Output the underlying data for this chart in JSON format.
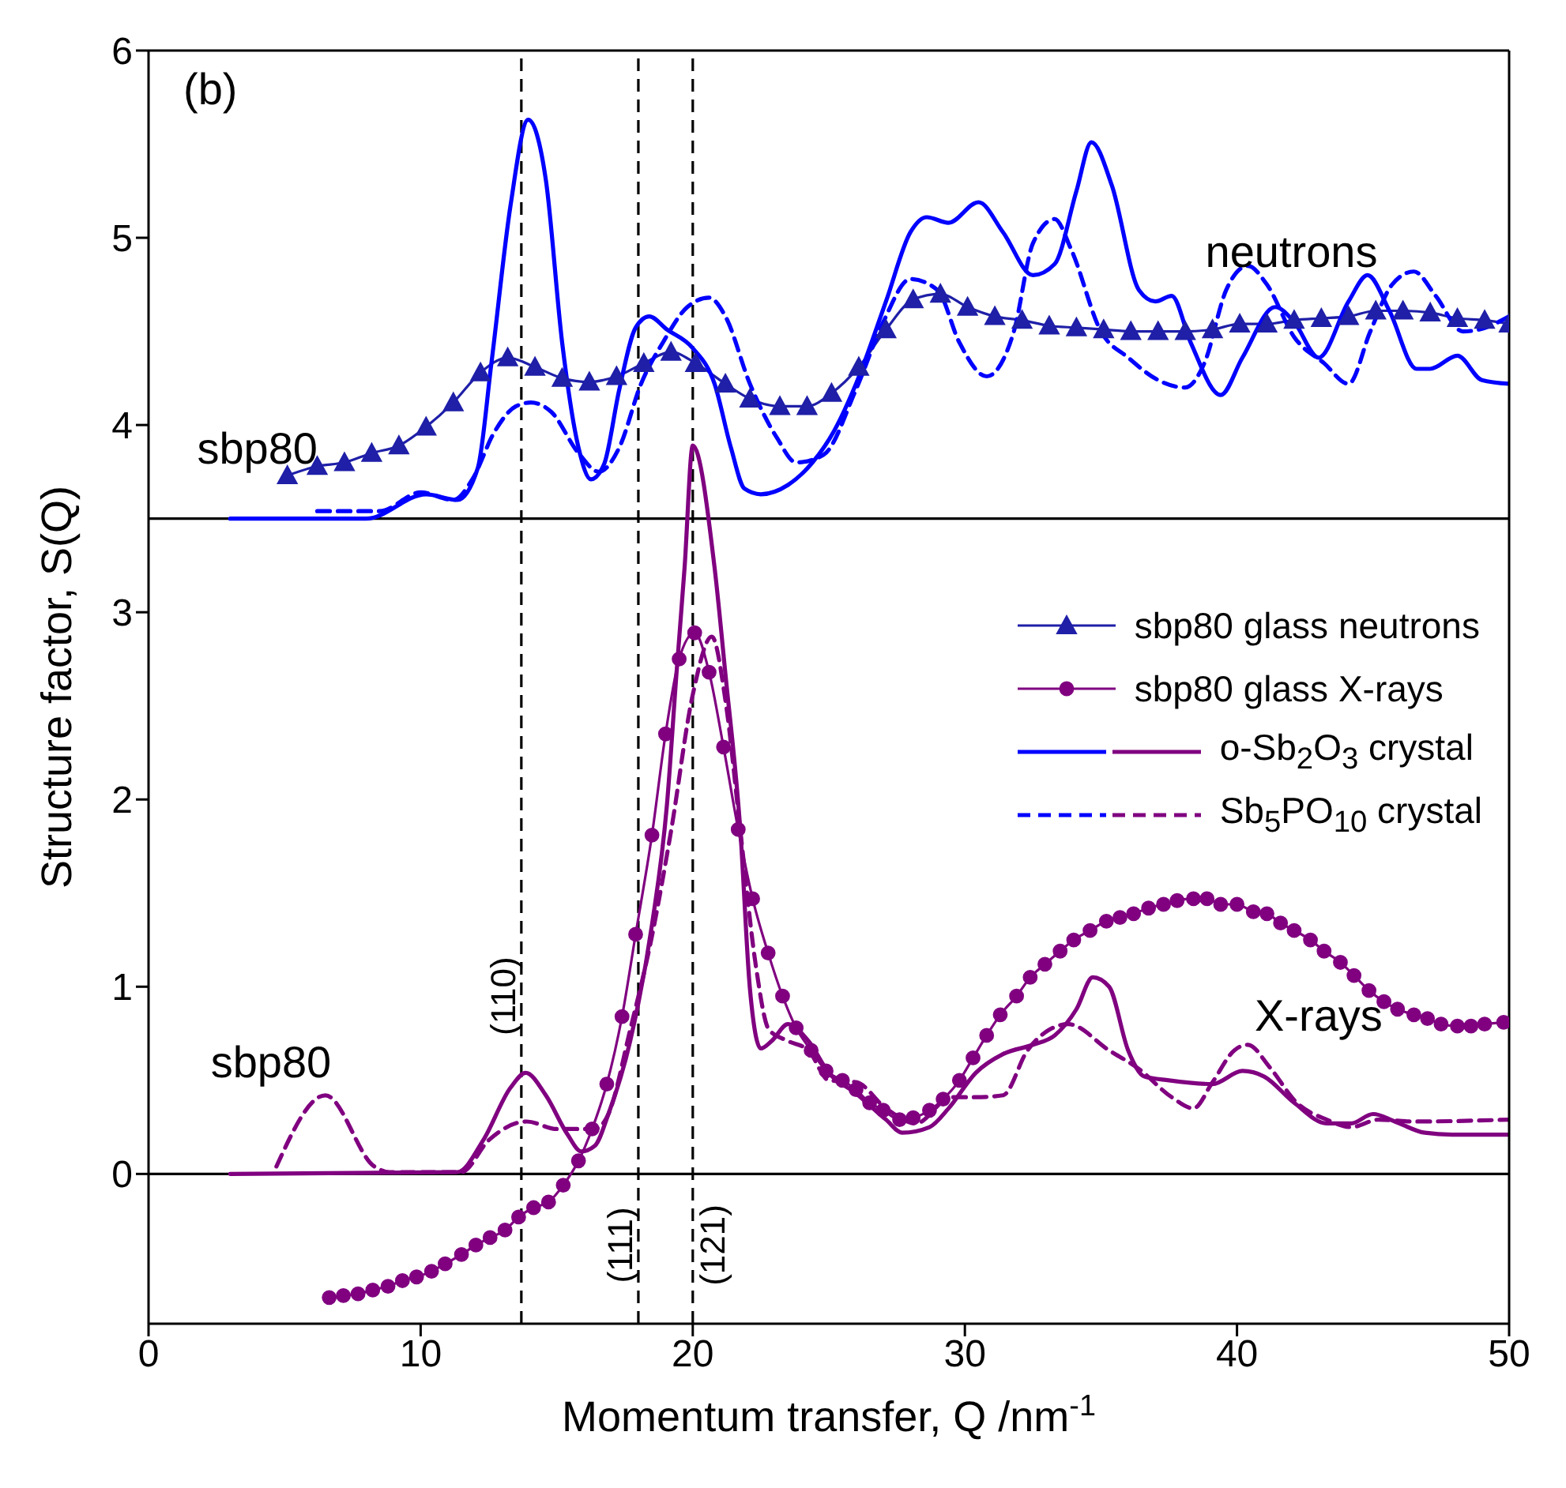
{
  "chart_data": {
    "type": "line",
    "xlabel": "Momentum transfer, Q /nm$^{-1}$",
    "ylabel": "Structure factor, S(Q)",
    "xlim": [
      0,
      50
    ],
    "xticks": [
      0,
      10,
      20,
      30,
      40,
      50
    ],
    "ylim": [
      -0.8,
      6
    ],
    "yticks": [
      0,
      1,
      2,
      3,
      4,
      5,
      6
    ],
    "legend": "right",
    "series": [
      {
        "name": "sbp80 glass neutrons",
        "color": "#1f1fa8",
        "marker": "triangle",
        "line_style": "solid",
        "x": [
          5.1,
          6.2,
          7.2,
          8.2,
          9.2,
          10.2,
          11.2,
          12.2,
          13.2,
          14.2,
          15.2,
          16.2,
          17.2,
          18.2,
          19.2,
          20.1,
          21.2,
          22.1,
          23.2,
          24.2,
          25.1,
          26.1,
          27.1,
          28.1,
          29.1,
          30.1,
          31.1,
          32.1,
          33.1,
          34.1,
          35.1,
          36.1,
          37.1,
          38.1,
          39.1,
          40.1,
          41.1,
          42.1,
          43.1,
          44.1,
          45.1,
          46.1,
          47.1,
          48.1,
          49.1,
          50.0
        ],
        "values": [
          3.73,
          3.78,
          3.8,
          3.85,
          3.89,
          3.99,
          4.12,
          4.28,
          4.36,
          4.31,
          4.25,
          4.23,
          4.26,
          4.33,
          4.39,
          4.33,
          4.22,
          4.14,
          4.1,
          4.1,
          4.17,
          4.31,
          4.51,
          4.67,
          4.7,
          4.63,
          4.58,
          4.56,
          4.53,
          4.52,
          4.51,
          4.5,
          4.5,
          4.5,
          4.51,
          4.54,
          4.54,
          4.56,
          4.57,
          4.58,
          4.61,
          4.61,
          4.6,
          4.57,
          4.56,
          4.54
        ]
      },
      {
        "name": "sbp80 glass X-rays",
        "color": "#800080",
        "marker": "circle",
        "line_style": "solid",
        "x": [
          6.64,
          7.16,
          7.7,
          8.24,
          8.8,
          9.33,
          9.85,
          10.4,
          10.9,
          11.5,
          12.03,
          12.55,
          13.1,
          13.6,
          14.15,
          14.7,
          15.24,
          15.8,
          16.3,
          16.84,
          17.4,
          17.9,
          18.5,
          19.0,
          19.5,
          20.07,
          20.6,
          21.13,
          21.67,
          22.2,
          22.77,
          23.3,
          23.8,
          24.35,
          24.9,
          25.5,
          26.0,
          26.5,
          27.0,
          27.6,
          28.1,
          28.7,
          29.2,
          29.8,
          30.3,
          30.8,
          31.3,
          31.9,
          32.4,
          32.94,
          33.5,
          34.0,
          34.6,
          35.2,
          35.7,
          36.2,
          36.75,
          37.3,
          37.8,
          38.4,
          38.9,
          39.4,
          40.0,
          40.6,
          41.1,
          41.6,
          42.1,
          42.7,
          43.2,
          43.8,
          44.3,
          44.85,
          45.4,
          45.9,
          46.5,
          47.0,
          47.5,
          48.1,
          48.6,
          49.1,
          49.8
        ],
        "values": [
          -0.66,
          -0.65,
          -0.64,
          -0.62,
          -0.6,
          -0.57,
          -0.55,
          -0.52,
          -0.48,
          -0.43,
          -0.38,
          -0.34,
          -0.3,
          -0.23,
          -0.18,
          -0.15,
          -0.06,
          0.07,
          0.24,
          0.48,
          0.84,
          1.28,
          1.81,
          2.35,
          2.75,
          2.89,
          2.68,
          2.28,
          1.84,
          1.47,
          1.18,
          0.95,
          0.78,
          0.66,
          0.55,
          0.5,
          0.45,
          0.38,
          0.34,
          0.29,
          0.3,
          0.34,
          0.4,
          0.5,
          0.62,
          0.74,
          0.85,
          0.95,
          1.05,
          1.12,
          1.19,
          1.25,
          1.3,
          1.35,
          1.37,
          1.39,
          1.42,
          1.44,
          1.46,
          1.47,
          1.47,
          1.44,
          1.44,
          1.4,
          1.39,
          1.34,
          1.3,
          1.25,
          1.19,
          1.13,
          1.06,
          0.98,
          0.92,
          0.88,
          0.85,
          0.83,
          0.8,
          0.79,
          0.79,
          0.8,
          0.81
        ]
      },
      {
        "color": "#0000ff",
        "marker": "none",
        "line_style": "solid",
        "x": [
          3.0,
          8.0,
          10.2,
          11.35,
          12.1,
          12.6,
          13.3,
          13.95,
          14.6,
          15.2,
          15.8,
          16.26,
          16.74,
          17.3,
          17.9,
          18.4,
          19.05,
          20.0,
          20.8,
          21.4,
          21.9,
          22.5,
          23.5,
          24.4,
          25.2,
          26.0,
          27.1,
          28.0,
          28.6,
          29.4,
          30.5,
          31.4,
          32.5,
          33.3,
          34.1,
          34.65,
          35.4,
          36.4,
          37.0,
          37.6,
          38.3,
          39.4,
          40.2,
          41.4,
          42.1,
          43.0,
          44.1,
          44.8,
          45.6,
          46.6,
          47.1,
          48.1,
          49.0,
          50.0
        ],
        "values": [
          3.5,
          3.5,
          3.63,
          3.6,
          3.77,
          4.33,
          5.17,
          5.63,
          5.31,
          4.44,
          3.88,
          3.71,
          3.79,
          4.19,
          4.52,
          4.58,
          4.51,
          4.41,
          4.22,
          3.88,
          3.66,
          3.63,
          3.68,
          3.8,
          3.97,
          4.22,
          4.66,
          5.03,
          5.11,
          5.08,
          5.19,
          5.03,
          4.8,
          4.86,
          5.25,
          5.51,
          5.28,
          4.72,
          4.66,
          4.69,
          4.44,
          4.16,
          4.36,
          4.63,
          4.55,
          4.36,
          4.66,
          4.8,
          4.61,
          4.3,
          4.3,
          4.37,
          4.24,
          4.22
        ]
      },
      {
        "name": "o-Sb$_{2}$O$_{3}$ crystal",
        "color": "#800080",
        "marker": "none",
        "line_style": "solid",
        "x": [
          3.0,
          11.35,
          12.3,
          13.3,
          13.86,
          14.6,
          15.4,
          15.9,
          16.4,
          16.9,
          17.7,
          18.5,
          19.05,
          19.4,
          19.7,
          20.0,
          20.8,
          21.2,
          21.75,
          22.1,
          22.5,
          22.9,
          23.5,
          24.25,
          25.0,
          26.0,
          27.1,
          27.7,
          28.7,
          29.4,
          30.4,
          31.4,
          32.5,
          33.3,
          34.1,
          34.7,
          35.3,
          36.0,
          36.6,
          37.5,
          39.1,
          40.2,
          41.0,
          42.1,
          43.3,
          44.2,
          45.0,
          45.8,
          46.9,
          47.9,
          50.0
        ],
        "values": [
          0,
          0.01,
          0.18,
          0.46,
          0.54,
          0.42,
          0.21,
          0.12,
          0.15,
          0.32,
          0.71,
          1.33,
          1.97,
          2.67,
          3.24,
          3.89,
          3.24,
          2.67,
          1.83,
          0.99,
          0.67,
          0.71,
          0.8,
          0.71,
          0.54,
          0.43,
          0.29,
          0.22,
          0.25,
          0.35,
          0.54,
          0.64,
          0.69,
          0.74,
          0.88,
          1.05,
          1.0,
          0.66,
          0.52,
          0.5,
          0.48,
          0.55,
          0.52,
          0.38,
          0.27,
          0.27,
          0.32,
          0.28,
          0.22,
          0.21,
          0.21
        ]
      },
      {
        "color": "#0000ff",
        "marker": "none",
        "line_style": "dashed",
        "x": [
          6.2,
          8.5,
          10.0,
          11.2,
          11.9,
          12.7,
          13.5,
          14.05,
          14.8,
          15.8,
          16.55,
          17.3,
          18.1,
          18.9,
          19.8,
          20.6,
          21.2,
          22.1,
          23.1,
          23.8,
          24.8,
          26.0,
          27.0,
          28.0,
          29.0,
          29.8,
          30.8,
          31.8,
          32.5,
          33.3,
          33.9,
          35.0,
          36.0,
          37.1,
          38.1,
          38.8,
          39.6,
          40.4,
          41.1,
          42.1,
          43.2,
          44.1,
          44.9,
          45.7,
          46.5,
          47.3,
          48.3,
          48.9,
          50.0
        ],
        "values": [
          3.54,
          3.54,
          3.64,
          3.6,
          3.71,
          3.96,
          4.1,
          4.12,
          4.07,
          3.85,
          3.75,
          3.88,
          4.22,
          4.44,
          4.63,
          4.68,
          4.58,
          4.22,
          3.93,
          3.8,
          3.84,
          4.19,
          4.55,
          4.78,
          4.72,
          4.44,
          4.26,
          4.5,
          4.97,
          5.1,
          4.94,
          4.5,
          4.36,
          4.24,
          4.2,
          4.33,
          4.72,
          4.85,
          4.75,
          4.47,
          4.33,
          4.22,
          4.5,
          4.75,
          4.82,
          4.69,
          4.5,
          4.51,
          4.58
        ]
      },
      {
        "name": "Sb$_{5}$PO$_{10}$ crystal",
        "color": "#800080",
        "marker": "none",
        "line_style": "dashed",
        "x": [
          4.7,
          6.5,
          8.3,
          8.85,
          11.5,
          12.5,
          13.9,
          15.0,
          16.4,
          16.9,
          17.7,
          18.5,
          19.2,
          20.0,
          20.7,
          21.2,
          21.75,
          22.3,
          22.8,
          23.5,
          24.25,
          25.0,
          26.0,
          27.1,
          28.2,
          29.5,
          30.4,
          31.4,
          32.3,
          33.1,
          33.8,
          35.3,
          36.4,
          37.6,
          38.4,
          39.1,
          39.9,
          40.4,
          41.2,
          42.2,
          43.3,
          44.2,
          45.2,
          46.5,
          50.0
        ],
        "values": [
          0.04,
          0.42,
          0.04,
          0.01,
          0.01,
          0.18,
          0.28,
          0.24,
          0.24,
          0.32,
          0.77,
          1.27,
          1.83,
          2.56,
          2.87,
          2.53,
          1.83,
          1.13,
          0.77,
          0.71,
          0.66,
          0.5,
          0.49,
          0.35,
          0.27,
          0.41,
          0.41,
          0.42,
          0.66,
          0.77,
          0.8,
          0.66,
          0.56,
          0.41,
          0.35,
          0.49,
          0.66,
          0.69,
          0.57,
          0.38,
          0.29,
          0.25,
          0.29,
          0.28,
          0.29
        ]
      }
    ],
    "ref_lines": [
      {
        "axis": "x",
        "value": 13.7,
        "color": "#000000",
        "line_style": "dashed"
      },
      {
        "axis": "x",
        "value": 18,
        "color": "#000000",
        "line_style": "dashed"
      },
      {
        "axis": "x",
        "value": 20,
        "color": "#000000",
        "line_style": "dashed"
      },
      {
        "axis": "y",
        "value": 3.5,
        "color": "#000000",
        "line_style": "solid"
      },
      {
        "axis": "y",
        "value": 0,
        "color": "#000000",
        "line_style": "solid"
      }
    ],
    "annotations": [
      "(b)",
      "sbp80",
      "neutrons",
      "sbp80",
      "X-rays",
      "(110)",
      "(111)",
      "(121)"
    ]
  }
}
